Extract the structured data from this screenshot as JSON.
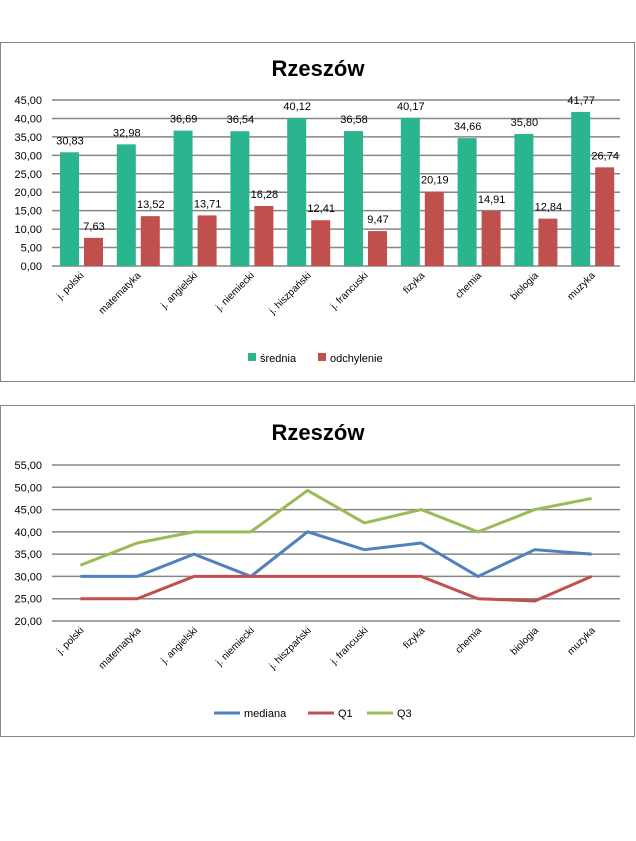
{
  "chart_data": [
    {
      "type": "bar",
      "title": "Rzeszów",
      "categories": [
        "j. polski",
        "matematyka",
        "j. angielski",
        "j. niemiecki",
        "j. hiszpański",
        "j. francuski",
        "fizyka",
        "chemia",
        "biologia",
        "muzyka"
      ],
      "series": [
        {
          "name": "średnia",
          "color": "#2bb58e",
          "values": [
            30.83,
            32.98,
            36.69,
            36.54,
            40.12,
            36.58,
            40.17,
            34.66,
            35.8,
            41.77
          ],
          "labels": [
            "30,83",
            "32,98",
            "36,69",
            "36,54",
            "40,12",
            "36,58",
            "40,17",
            "34,66",
            "35,80",
            "41,77"
          ]
        },
        {
          "name": "odchylenie",
          "color": "#c0504d",
          "values": [
            7.63,
            13.52,
            13.71,
            16.28,
            12.41,
            9.47,
            20.19,
            14.91,
            12.84,
            26.74
          ],
          "labels": [
            "7,63",
            "13,52",
            "13,71",
            "16,28",
            "12,41",
            "9,47",
            "20,19",
            "14,91",
            "12,84",
            "26,74"
          ]
        }
      ],
      "ylim": [
        0,
        45
      ],
      "yticks": [
        "0,00",
        "5,00",
        "10,00",
        "15,00",
        "20,00",
        "25,00",
        "30,00",
        "35,00",
        "40,00",
        "45,00"
      ],
      "grid": true,
      "legend": "bottom"
    },
    {
      "type": "line",
      "title": "Rzeszów",
      "categories": [
        "j. polski",
        "matematyka",
        "j. angielski",
        "j. niemiecki",
        "j. hiszpański",
        "j. francuski",
        "fizyka",
        "chemia",
        "biologia",
        "muzyka"
      ],
      "series": [
        {
          "name": "mediana",
          "color": "#4f81bd",
          "values": [
            30,
            30,
            35,
            30,
            40,
            36,
            37.5,
            30,
            36,
            35
          ]
        },
        {
          "name": "Q1",
          "color": "#c0504d",
          "values": [
            25,
            25,
            30,
            30,
            30,
            30,
            30,
            25,
            24.5,
            30
          ]
        },
        {
          "name": "Q3",
          "color": "#9bbb59",
          "values": [
            32.5,
            37.5,
            40,
            40,
            49.3,
            42,
            45,
            40,
            45,
            47.5
          ]
        }
      ],
      "ylim": [
        20,
        55
      ],
      "yticks": [
        "20,00",
        "25,00",
        "30,00",
        "35,00",
        "40,00",
        "45,00",
        "50,00",
        "55,00"
      ],
      "grid": true,
      "legend": "bottom"
    }
  ]
}
